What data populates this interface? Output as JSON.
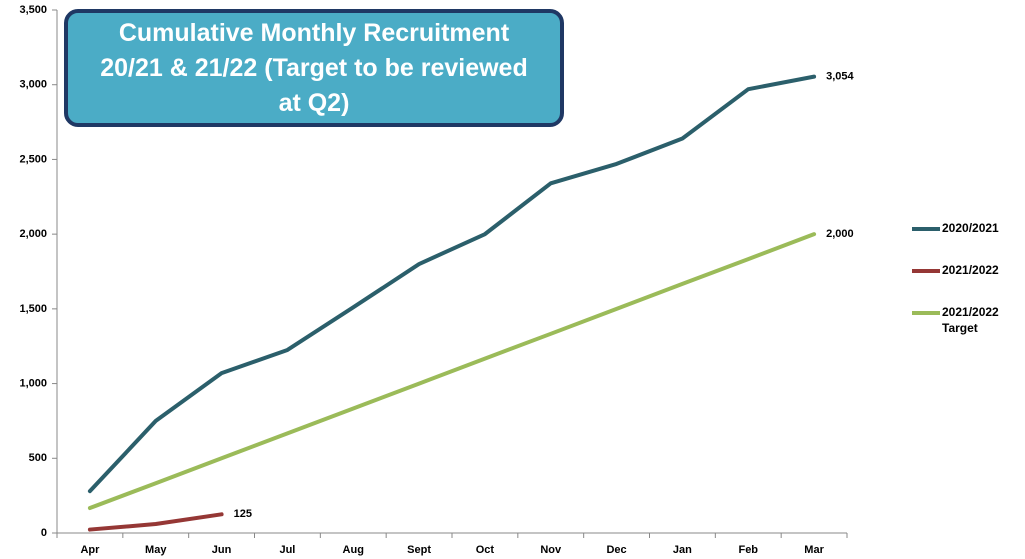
{
  "chart_data": {
    "type": "line",
    "title": "Cumulative Monthly Recruitment 20/21 & 21/22 (Target to be reviewed at Q2)",
    "categories": [
      "Apr",
      "May",
      "Jun",
      "Jul",
      "Aug",
      "Sept",
      "Oct",
      "Nov",
      "Dec",
      "Jan",
      "Feb",
      "Mar"
    ],
    "series": [
      {
        "name": "2020/2021",
        "color": "#2b5f6b",
        "values": [
          280,
          750,
          1070,
          1225,
          1510,
          1800,
          2000,
          2340,
          2470,
          2640,
          2970,
          3054
        ],
        "value_labels": [
          null,
          null,
          null,
          null,
          null,
          null,
          null,
          null,
          null,
          null,
          null,
          "3,054"
        ]
      },
      {
        "name": "2021/2022",
        "color": "#953735",
        "values": [
          23,
          60,
          125,
          null,
          null,
          null,
          null,
          null,
          null,
          null,
          null,
          null
        ],
        "value_labels": [
          null,
          null,
          "125",
          null,
          null,
          null,
          null,
          null,
          null,
          null,
          null,
          null
        ]
      },
      {
        "name": "2021/2022 Target",
        "color": "#9bbb59",
        "values": [
          167,
          333,
          500,
          667,
          833,
          1000,
          1167,
          1333,
          1500,
          1667,
          1833,
          2000
        ],
        "value_labels": [
          null,
          null,
          null,
          null,
          null,
          null,
          null,
          null,
          null,
          null,
          null,
          "2,000"
        ]
      }
    ],
    "ylim": [
      0,
      3500
    ],
    "yticks": [
      0,
      500,
      {
        "value": 1000,
        "label": "1,000"
      },
      {
        "value": 1500,
        "label": "1,500"
      },
      {
        "value": 2000,
        "label": "2,000"
      },
      {
        "value": 2500,
        "label": "2,500"
      },
      {
        "value": 3000,
        "label": "3,000"
      },
      {
        "value": 3500,
        "label": "3,500"
      }
    ],
    "grid": false,
    "legend": "right"
  }
}
